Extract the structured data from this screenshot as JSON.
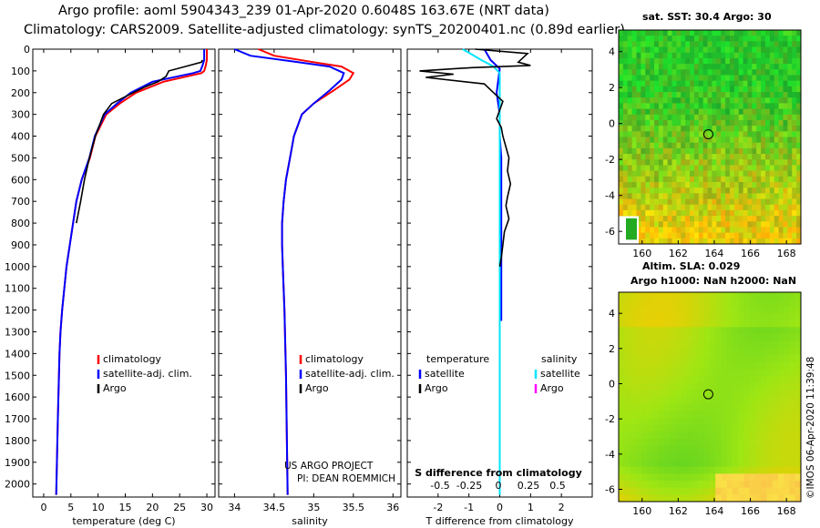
{
  "header": {
    "line1": "Argo profile: aoml 5904343_239 01-Apr-2020 0.6048S 163.67E (NRT data)",
    "line2": "Climatology: CARS2009. Satellite-adjusted climatology: synTS_20200401.nc (0.89d earlier)"
  },
  "credit": "©IMOS 06-Apr-2020 11:39:48",
  "colors": {
    "climatology": "#ff0000",
    "satellite": "#0000ff",
    "argo": "#000000",
    "sal_satellite": "#00e5ff",
    "sal_argo": "#ff00ff"
  },
  "chart_data": [
    {
      "type": "line",
      "id": "temperature",
      "xlabel": "temperature (deg C)",
      "ylabel": "",
      "xlim": [
        -2,
        31.5
      ],
      "ylim": [
        2060,
        0
      ],
      "xticks": [
        0,
        5,
        10,
        15,
        20,
        25,
        30
      ],
      "yticks": [
        0,
        100,
        200,
        300,
        400,
        500,
        600,
        700,
        800,
        900,
        1000,
        1100,
        1200,
        1300,
        1400,
        1500,
        1600,
        1700,
        1800,
        1900,
        2000
      ],
      "legend": [
        "climatology",
        "satellite-adj. clim.",
        "Argo"
      ],
      "series": [
        {
          "name": "climatology",
          "color": "#ff0000",
          "x": [
            30.0,
            30.0,
            29.8,
            29.5,
            29.0,
            22.0,
            17.0,
            14.0,
            11.5,
            9.5,
            8.5,
            7.0,
            6.0,
            5.4,
            4.8,
            4.2,
            3.8,
            3.4,
            3.1,
            2.9,
            2.6,
            2.3
          ],
          "y": [
            0,
            50,
            75,
            100,
            110,
            150,
            200,
            250,
            300,
            400,
            500,
            600,
            700,
            800,
            900,
            1000,
            1100,
            1200,
            1300,
            1400,
            1700,
            2050
          ]
        },
        {
          "name": "satellite-adj. clim.",
          "color": "#0000ff",
          "x": [
            29.5,
            29.5,
            29.2,
            28.8,
            27.5,
            20.0,
            16.0,
            13.5,
            11.2,
            9.4,
            8.4,
            7.0,
            6.0,
            5.4,
            4.8,
            4.2,
            3.8,
            3.4,
            3.1,
            2.9,
            2.6,
            2.3
          ],
          "y": [
            0,
            50,
            75,
            100,
            110,
            150,
            200,
            250,
            300,
            400,
            500,
            600,
            700,
            800,
            900,
            1000,
            1100,
            1200,
            1300,
            1400,
            1700,
            2050
          ]
        },
        {
          "name": "Argo",
          "color": "#000000",
          "x": [
            29.2,
            29.0,
            26.0,
            23.0,
            22.5,
            21.0,
            18.5,
            16.5,
            14.5,
            12.5,
            11.0,
            9.5,
            8.4,
            7.5,
            6.8,
            6.0
          ],
          "y": [
            50,
            60,
            80,
            100,
            125,
            150,
            175,
            200,
            225,
            250,
            300,
            400,
            500,
            600,
            700,
            800
          ]
        }
      ]
    },
    {
      "type": "line",
      "id": "salinity",
      "xlabel": "salinity",
      "ylabel": "",
      "xlim": [
        33.8,
        36.1
      ],
      "ylim": [
        2060,
        0
      ],
      "xticks": [
        34,
        34.5,
        35,
        35.5,
        36
      ],
      "legend": [
        "climatology",
        "satellite-adj. clim.",
        "Argo"
      ],
      "annotations": [
        "US ARGO PROJECT",
        "PI: DEAN ROEMMICH"
      ],
      "series": [
        {
          "name": "climatology",
          "color": "#ff0000",
          "x": [
            34.3,
            34.5,
            35.0,
            35.35,
            35.5,
            35.45,
            35.25,
            35.0,
            34.85,
            34.75,
            34.7,
            34.65,
            34.62,
            34.6,
            34.6,
            34.61,
            34.63,
            34.65,
            34.67
          ],
          "y": [
            0,
            30,
            60,
            80,
            110,
            140,
            190,
            250,
            300,
            400,
            500,
            600,
            700,
            800,
            900,
            1000,
            1200,
            1500,
            2050
          ]
        },
        {
          "name": "satellite-adj. clim.",
          "color": "#0000ff",
          "x": [
            34.0,
            34.2,
            34.8,
            35.2,
            35.38,
            35.35,
            35.2,
            35.0,
            34.85,
            34.75,
            34.7,
            34.65,
            34.62,
            34.6,
            34.6,
            34.61,
            34.63,
            34.65,
            34.67
          ],
          "y": [
            0,
            30,
            60,
            80,
            110,
            140,
            190,
            250,
            300,
            400,
            500,
            600,
            700,
            800,
            900,
            1000,
            1200,
            1500,
            2050
          ]
        }
      ]
    },
    {
      "type": "line",
      "id": "difference",
      "xlabel": "T difference from climatology",
      "xlabel_top": "S difference from climatology",
      "xlim": [
        -3.0,
        3.0
      ],
      "ylim": [
        2060,
        0
      ],
      "xticks": [
        -2,
        -1,
        0,
        1,
        2
      ],
      "sticks_labels": [
        "-0.5",
        "-0.25",
        "0",
        "0.25",
        "0.5"
      ],
      "legend": {
        "temperature": [
          "satellite",
          "Argo"
        ],
        "salinity": [
          "satellite",
          "Argo"
        ]
      },
      "legend_titles": [
        "temperature",
        "salinity"
      ],
      "series": [
        {
          "name": "T satellite",
          "color": "#0000ff",
          "x": [
            -0.5,
            -0.3,
            0.0,
            -0.1,
            0.0,
            0.0,
            0.05,
            0.05,
            0.05,
            0.05,
            0.05,
            0.05
          ],
          "y": [
            0,
            50,
            90,
            200,
            300,
            400,
            500,
            700,
            900,
            1100,
            1200,
            1250
          ]
        },
        {
          "name": "S satellite",
          "color": "#00e5ff",
          "x": [
            -1.2,
            -0.6,
            -0.2,
            0.0,
            0.0,
            0.0,
            0.0,
            0.0
          ],
          "y": [
            0,
            50,
            80,
            110,
            200,
            500,
            1000,
            2050
          ]
        },
        {
          "name": "Argo",
          "color": "#000000",
          "x": [
            -0.8,
            0.9,
            0.6,
            1.0,
            -0.9,
            -2.6,
            -1.5,
            -2.4,
            -0.5,
            -0.2,
            0.1,
            0.0,
            -0.1,
            0.05,
            0.1,
            0.2,
            0.3,
            0.25,
            0.35,
            0.25,
            0.2,
            0.3,
            0.15,
            0.1,
            0.05,
            0.0
          ],
          "y": [
            0,
            20,
            60,
            75,
            85,
            100,
            115,
            130,
            160,
            200,
            240,
            280,
            320,
            360,
            400,
            450,
            500,
            560,
            620,
            680,
            720,
            780,
            840,
            900,
            960,
            1000
          ]
        }
      ]
    },
    {
      "type": "heatmap",
      "id": "sst_map",
      "title": "sat. SST: 30.4 Argo: 30",
      "xticks": [
        160,
        162,
        164,
        166,
        168
      ],
      "yticks": [
        4,
        2,
        0,
        -2,
        -4,
        -6
      ],
      "xlim": [
        158.7,
        168.8
      ],
      "ylim": [
        -6.7,
        5.2
      ],
      "marker": {
        "lon": 163.67,
        "lat": -0.6
      }
    },
    {
      "type": "heatmap",
      "id": "sla_map",
      "title": "Altim. SLA: 0.029",
      "subtitle": "Argo h1000: NaN h2000: NaN",
      "xticks": [
        160,
        162,
        164,
        166,
        168
      ],
      "yticks": [
        4,
        2,
        0,
        -2,
        -4,
        -6
      ],
      "xlim": [
        158.7,
        168.8
      ],
      "ylim": [
        -6.7,
        5.2
      ],
      "marker": {
        "lon": 163.67,
        "lat": -0.6
      }
    }
  ]
}
